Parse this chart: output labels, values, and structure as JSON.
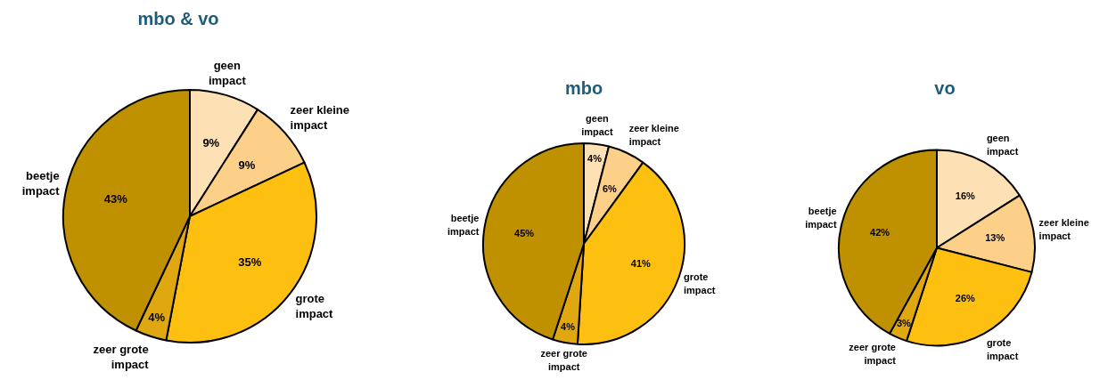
{
  "chart_data": [
    {
      "type": "pie",
      "title": "mbo & vo",
      "categories": [
        "geen impact",
        "zeer kleine impact",
        "grote impact",
        "zeer grote impact",
        "beetje impact"
      ],
      "values": [
        9,
        9,
        35,
        4,
        43
      ],
      "value_labels": [
        "9%",
        "9%",
        "35%",
        "4%",
        "43%"
      ],
      "colors": [
        "#fde0b4",
        "#fdd08a",
        "#fdc010",
        "#e0a810",
        "#bf9000"
      ],
      "legend": false
    },
    {
      "type": "pie",
      "title": "mbo",
      "categories": [
        "geen impact",
        "zeer kleine impact",
        "grote impact",
        "zeer grote impact",
        "beetje impact"
      ],
      "values": [
        4,
        6,
        41,
        4,
        45
      ],
      "value_labels": [
        "4%",
        "6%",
        "41%",
        "4%",
        "45%"
      ],
      "colors": [
        "#fde0b4",
        "#fdd08a",
        "#fdc010",
        "#e0a810",
        "#bf9000"
      ],
      "legend": false
    },
    {
      "type": "pie",
      "title": "vo",
      "categories": [
        "geen impact",
        "zeer kleine impact",
        "grote impact",
        "zeer grote impact",
        "beetje impact"
      ],
      "values": [
        16,
        13,
        26,
        3,
        42
      ],
      "value_labels": [
        "16%",
        "13%",
        "26%",
        "3%",
        "42%"
      ],
      "colors": [
        "#fde0b4",
        "#fdd08a",
        "#fdc010",
        "#e0a810",
        "#bf9000"
      ],
      "legend": false
    }
  ]
}
